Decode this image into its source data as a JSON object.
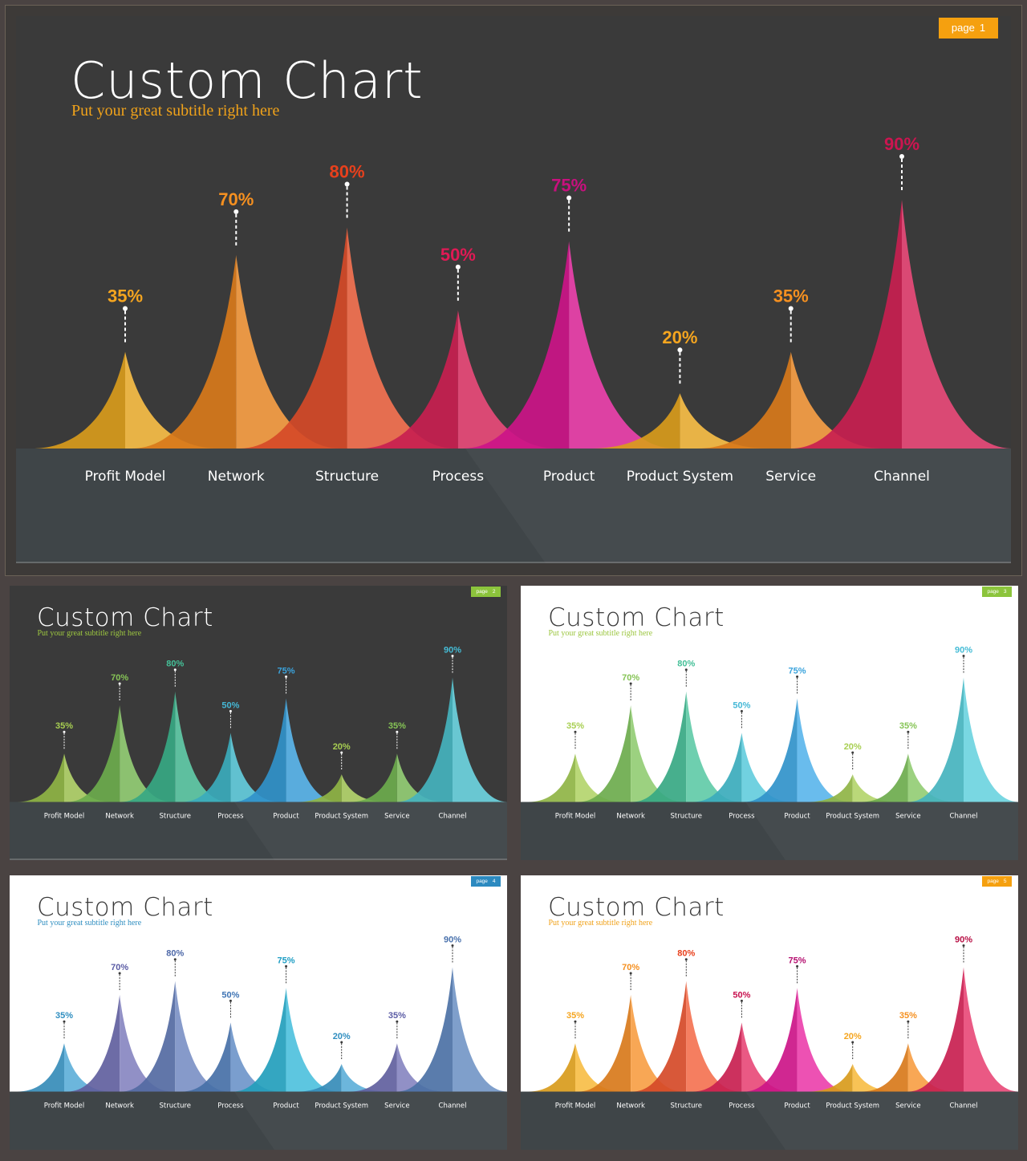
{
  "slides": [
    {
      "id": "hero",
      "title": "Custom Chart",
      "subtitle": "Put your great subtitle right here",
      "badge": {
        "text": "page",
        "num": "1"
      },
      "theme": {
        "bg": "#3a3a3a",
        "title": "#ffffff",
        "subtitle": "#f0a21a",
        "badge": "#f5a00f",
        "band": "#3f4548",
        "label": "#ffffff"
      },
      "palette": [
        "#f5b020",
        "#f58a1f",
        "#f2542d",
        "#e3245b",
        "#e8189a",
        "#f5b020",
        "#f58a1f",
        "#e3245b"
      ],
      "label_colors": [
        "#f5a51f",
        "#f59020",
        "#e8401c",
        "#e01a55",
        "#c8107e",
        "#f5a51f",
        "#f59020",
        "#cc1550"
      ]
    },
    {
      "id": "green-dark",
      "title": "Custom Chart",
      "subtitle": "Put your great subtitle right here",
      "badge": {
        "text": "page",
        "num": "2"
      },
      "theme": {
        "bg": "#3a3a3a",
        "title": "#ffffff",
        "subtitle": "#9cc640",
        "badge": "#8cc43c",
        "band": "#3f4548",
        "label": "#ffffff"
      },
      "palette": [
        "#a3cc4e",
        "#7cc257",
        "#3fbf95",
        "#43c2d6",
        "#38a6e6",
        "#a3cc4e",
        "#7cc257",
        "#4ecbd8"
      ],
      "label_colors": [
        "#a8cf52",
        "#86c456",
        "#45c098",
        "#45b8d6",
        "#3aa3dc",
        "#a8cf52",
        "#86c456",
        "#45bcd6"
      ]
    },
    {
      "id": "green-light",
      "title": "Custom Chart",
      "subtitle": "Put your great subtitle right here",
      "badge": {
        "text": "page",
        "num": "3"
      },
      "theme": {
        "bg": "#ffffff",
        "title": "#3a3a3a",
        "subtitle": "#9cc640",
        "badge": "#8cc43c",
        "band": "#3f4548",
        "label": "#ffffff"
      },
      "palette": [
        "#a3cc4e",
        "#7cc257",
        "#3fbf95",
        "#43c2d6",
        "#38a6e6",
        "#a3cc4e",
        "#7cc257",
        "#4ecbd8"
      ],
      "label_colors": [
        "#a8cf52",
        "#86c456",
        "#45c098",
        "#45b8d6",
        "#3aa3dc",
        "#a8cf52",
        "#86c456",
        "#45bcd6"
      ]
    },
    {
      "id": "blue-light",
      "title": "Custom Chart",
      "subtitle": "Put your great subtitle right here",
      "badge": {
        "text": "page",
        "num": "4"
      },
      "theme": {
        "bg": "#ffffff",
        "title": "#3a3a3a",
        "subtitle": "#2f8ec0",
        "badge": "#2c8ac0",
        "band": "#3f4548",
        "label": "#ffffff"
      },
      "palette": [
        "#3d9fd1",
        "#6e6db3",
        "#5f79b8",
        "#4f7fbe",
        "#28b3d6",
        "#3d9fd1",
        "#6e6db3",
        "#5680bb"
      ],
      "label_colors": [
        "#2f8ec0",
        "#5b5ca5",
        "#4d68a8",
        "#3f74b4",
        "#1f9ec4",
        "#2f8ec0",
        "#5b5ca5",
        "#4a72ad"
      ]
    },
    {
      "id": "orange-light",
      "title": "Custom Chart",
      "subtitle": "Put your great subtitle right here",
      "badge": {
        "text": "page",
        "num": "5"
      },
      "theme": {
        "bg": "#ffffff",
        "title": "#3a3a3a",
        "subtitle": "#f0a21a",
        "badge": "#f5a00f",
        "band": "#3f4548",
        "label": "#ffffff"
      },
      "palette": [
        "#f5b020",
        "#f58a1f",
        "#f2542d",
        "#e3245b",
        "#e8189a",
        "#f5b020",
        "#f58a1f",
        "#e3245b"
      ],
      "label_colors": [
        "#f5a51f",
        "#f59020",
        "#e8401c",
        "#c8104e",
        "#b50f70",
        "#f5a51f",
        "#f59020",
        "#b81045"
      ]
    }
  ],
  "chart_data": {
    "type": "area",
    "categories": [
      "Profit Model",
      "Network",
      "Structure",
      "Process",
      "Product",
      "Product System",
      "Service",
      "Channel"
    ],
    "values": [
      35,
      70,
      80,
      50,
      75,
      20,
      35,
      90
    ],
    "value_labels": [
      "35%",
      "70%",
      "80%",
      "50%",
      "75%",
      "20%",
      "35%",
      "90%"
    ],
    "ylim": [
      0,
      100
    ],
    "grid": false,
    "legend": "none"
  }
}
